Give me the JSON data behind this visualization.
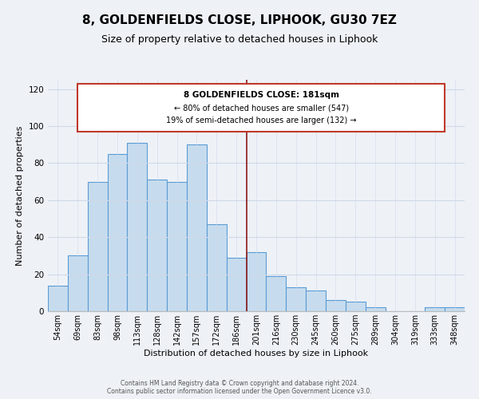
{
  "title": "8, GOLDENFIELDS CLOSE, LIPHOOK, GU30 7EZ",
  "subtitle": "Size of property relative to detached houses in Liphook",
  "xlabel": "Distribution of detached houses by size in Liphook",
  "ylabel": "Number of detached properties",
  "categories": [
    "54sqm",
    "69sqm",
    "83sqm",
    "98sqm",
    "113sqm",
    "128sqm",
    "142sqm",
    "157sqm",
    "172sqm",
    "186sqm",
    "201sqm",
    "216sqm",
    "230sqm",
    "245sqm",
    "260sqm",
    "275sqm",
    "289sqm",
    "304sqm",
    "319sqm",
    "333sqm",
    "348sqm"
  ],
  "values": [
    14,
    30,
    70,
    85,
    91,
    71,
    70,
    90,
    47,
    29,
    32,
    19,
    13,
    11,
    6,
    5,
    2,
    0,
    0,
    2,
    2
  ],
  "bar_color": "#c6dcee",
  "bar_edge_color": "#5b9bd5",
  "vline_x": 9.5,
  "vline_color": "#8b1a1a",
  "annotation_title": "8 GOLDENFIELDS CLOSE: 181sqm",
  "annotation_line1": "← 80% of detached houses are smaller (547)",
  "annotation_line2": "19% of semi-detached houses are larger (132) →",
  "annotation_box_color": "#ffffff",
  "annotation_box_edge": "#c0392b",
  "ylim": [
    0,
    125
  ],
  "yticks": [
    0,
    20,
    40,
    60,
    80,
    100,
    120
  ],
  "footer1": "Contains HM Land Registry data © Crown copyright and database right 2024.",
  "footer2": "Contains public sector information licensed under the Open Government Licence v3.0.",
  "bg_color": "#eef2f7",
  "title_fontsize": 11,
  "subtitle_fontsize": 9,
  "xlabel_fontsize": 8,
  "ylabel_fontsize": 8
}
